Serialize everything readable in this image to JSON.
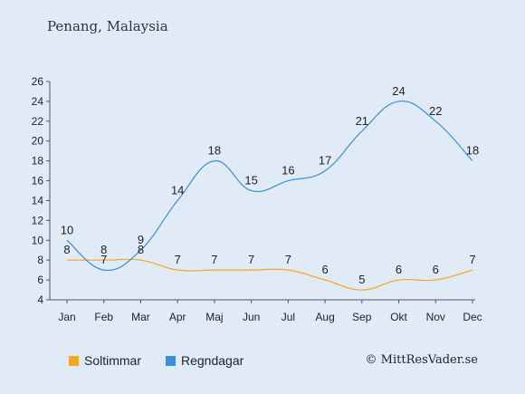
{
  "title": "Penang, Malaysia",
  "credit": "© MittResVader.se",
  "colors": {
    "sun": "#f5a623",
    "rain": "#3a8fe0",
    "background": "#e1ebf8"
  },
  "chart_data": {
    "type": "line",
    "categories": [
      "Jan",
      "Feb",
      "Mar",
      "Apr",
      "Maj",
      "Jun",
      "Jul",
      "Aug",
      "Sep",
      "Okt",
      "Nov",
      "Dec"
    ],
    "series": [
      {
        "name": "Soltimmar",
        "color": "#f5a623",
        "values": [
          8,
          8,
          8,
          7,
          7,
          7,
          7,
          6,
          5,
          6,
          6,
          7
        ]
      },
      {
        "name": "Regndagar",
        "color": "#3a8fe0",
        "values": [
          10,
          7,
          9,
          14,
          18,
          15,
          16,
          17,
          21,
          24,
          22,
          18
        ]
      }
    ],
    "ylim": [
      4,
      26
    ],
    "yticks": [
      4,
      6,
      8,
      10,
      12,
      14,
      16,
      18,
      20,
      22,
      24,
      26
    ],
    "legend_position": "bottom-left"
  }
}
